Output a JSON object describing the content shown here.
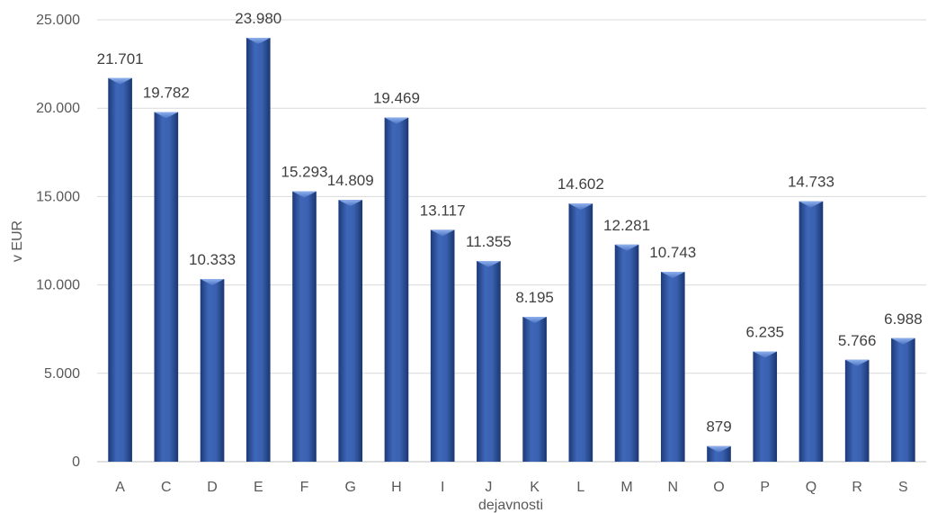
{
  "chart_data": {
    "type": "bar",
    "categories": [
      "A",
      "C",
      "D",
      "E",
      "F",
      "G",
      "H",
      "I",
      "J",
      "K",
      "L",
      "M",
      "N",
      "O",
      "P",
      "Q",
      "R",
      "S"
    ],
    "values": [
      21701,
      19782,
      10333,
      23980,
      15293,
      14809,
      19469,
      13117,
      11355,
      8195,
      14602,
      12281,
      10743,
      879,
      6235,
      14733,
      5766,
      6988
    ],
    "value_labels": [
      "21.701",
      "19.782",
      "10.333",
      "23.980",
      "15.293",
      "14.809",
      "19.469",
      "13.117",
      "11.355",
      "8.195",
      "14.602",
      "12.281",
      "10.743",
      "879",
      "6.235",
      "14.733",
      "5.766",
      "6.988"
    ],
    "y_ticks": [
      0,
      5000,
      10000,
      15000,
      20000,
      25000
    ],
    "y_tick_labels": [
      "0",
      "5.000",
      "10.000",
      "15.000",
      "20.000",
      "25.000"
    ],
    "ylim": [
      0,
      25000
    ],
    "xlabel": "dejavnosti",
    "ylabel": "v EUR",
    "grid": true,
    "legend": "none",
    "bar_color": "#2f55a4"
  }
}
